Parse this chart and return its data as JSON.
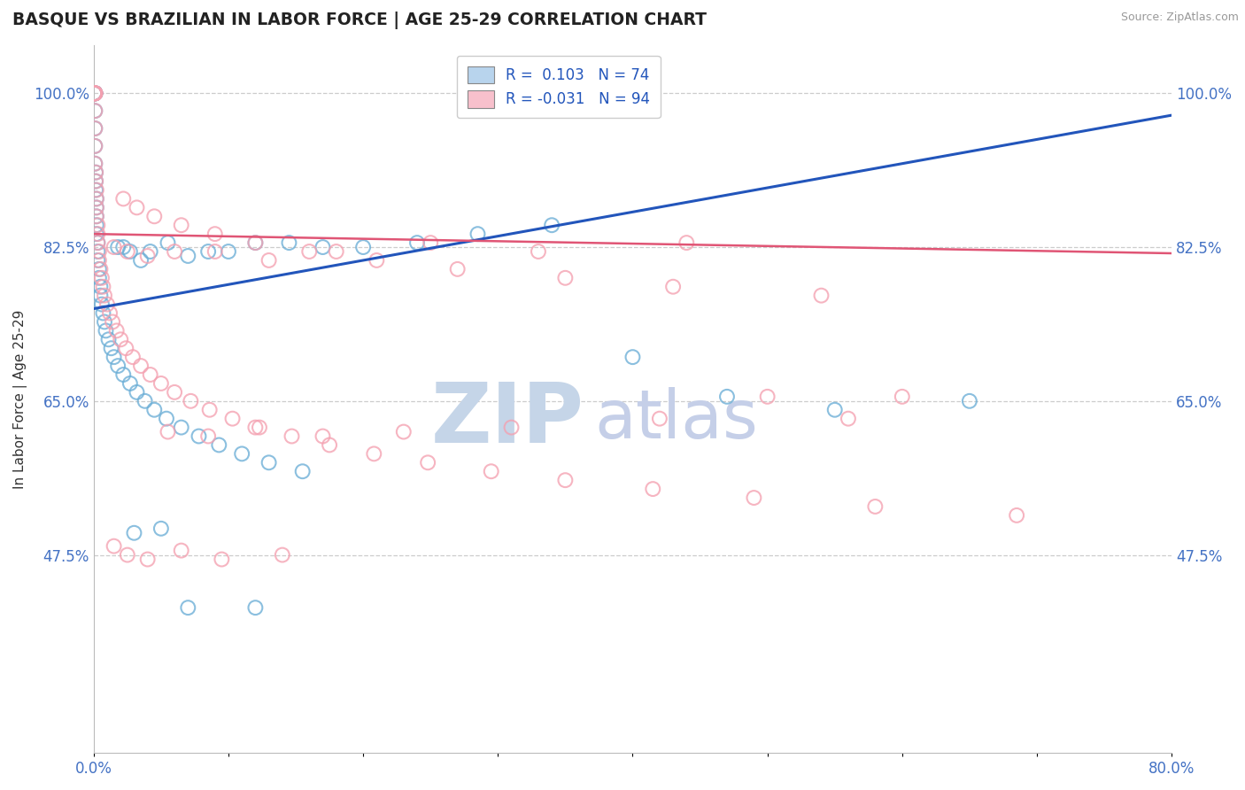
{
  "title": "BASQUE VS BRAZILIAN IN LABOR FORCE | AGE 25-29 CORRELATION CHART",
  "source": "Source: ZipAtlas.com",
  "ylabel": "In Labor Force | Age 25-29",
  "xlim": [
    0.0,
    0.8
  ],
  "ylim": [
    0.25,
    1.055
  ],
  "yticks": [
    0.475,
    0.65,
    0.825,
    1.0
  ],
  "ytick_labels": [
    "47.5%",
    "65.0%",
    "82.5%",
    "100.0%"
  ],
  "xticks": [
    0.0,
    0.1,
    0.2,
    0.3,
    0.4,
    0.5,
    0.6,
    0.7,
    0.8
  ],
  "xtick_labels": [
    "0.0%",
    "",
    "",
    "",
    "",
    "",
    "",
    "",
    "80.0%"
  ],
  "basque_color": "#6baed6",
  "brazilian_color": "#f4a0b0",
  "trend_color_basque": "#2255bb",
  "trend_color_brazilian": "#e05575",
  "watermark_zip": "ZIP",
  "watermark_atlas": "atlas",
  "watermark_color_zip": "#c5d5e8",
  "watermark_color_atlas": "#c5cfe8",
  "background_color": "#ffffff",
  "grid_color": "#cccccc",
  "tick_color": "#4472c4",
  "title_color": "#222222",
  "legend_basque_label": "R =  0.103   N = 74",
  "legend_brazil_label": "R = -0.031   N = 94",
  "blue_trend_x": [
    0.0,
    0.8
  ],
  "blue_trend_y": [
    0.755,
    0.975
  ],
  "pink_trend_x": [
    0.0,
    0.8
  ],
  "pink_trend_y": [
    0.84,
    0.818
  ],
  "basque_x": [
    0.0005,
    0.0005,
    0.0005,
    0.0005,
    0.0005,
    0.001,
    0.001,
    0.001,
    0.001,
    0.001,
    0.001,
    0.001,
    0.001,
    0.001,
    0.001,
    0.0015,
    0.0015,
    0.0015,
    0.002,
    0.002,
    0.002,
    0.002,
    0.002,
    0.003,
    0.003,
    0.003,
    0.004,
    0.004,
    0.005,
    0.005,
    0.006,
    0.007,
    0.008,
    0.009,
    0.011,
    0.013,
    0.015,
    0.018,
    0.022,
    0.027,
    0.032,
    0.038,
    0.045,
    0.054,
    0.065,
    0.078,
    0.093,
    0.11,
    0.13,
    0.155,
    0.018,
    0.022,
    0.027,
    0.035,
    0.042,
    0.055,
    0.07,
    0.085,
    0.1,
    0.12,
    0.145,
    0.17,
    0.2,
    0.24,
    0.285,
    0.34,
    0.4,
    0.47,
    0.55,
    0.65,
    0.03,
    0.05,
    0.07,
    0.12
  ],
  "basque_y": [
    1.0,
    1.0,
    1.0,
    1.0,
    1.0,
    1.0,
    1.0,
    1.0,
    1.0,
    1.0,
    1.0,
    0.98,
    0.96,
    0.94,
    0.92,
    0.91,
    0.9,
    0.89,
    0.88,
    0.87,
    0.86,
    0.85,
    0.84,
    0.83,
    0.82,
    0.81,
    0.8,
    0.79,
    0.78,
    0.77,
    0.76,
    0.75,
    0.74,
    0.73,
    0.72,
    0.71,
    0.7,
    0.69,
    0.68,
    0.67,
    0.66,
    0.65,
    0.64,
    0.63,
    0.62,
    0.61,
    0.6,
    0.59,
    0.58,
    0.57,
    0.825,
    0.825,
    0.82,
    0.81,
    0.82,
    0.83,
    0.815,
    0.82,
    0.82,
    0.83,
    0.83,
    0.825,
    0.825,
    0.83,
    0.84,
    0.85,
    0.7,
    0.655,
    0.64,
    0.65,
    0.5,
    0.505,
    0.415,
    0.415
  ],
  "brazilian_x": [
    0.0005,
    0.0005,
    0.0005,
    0.0005,
    0.0005,
    0.0005,
    0.001,
    0.001,
    0.001,
    0.001,
    0.001,
    0.001,
    0.001,
    0.001,
    0.001,
    0.001,
    0.0015,
    0.0015,
    0.002,
    0.002,
    0.002,
    0.002,
    0.003,
    0.003,
    0.003,
    0.004,
    0.004,
    0.005,
    0.006,
    0.007,
    0.008,
    0.01,
    0.012,
    0.014,
    0.017,
    0.02,
    0.024,
    0.029,
    0.035,
    0.042,
    0.05,
    0.06,
    0.072,
    0.086,
    0.103,
    0.123,
    0.147,
    0.175,
    0.208,
    0.248,
    0.295,
    0.35,
    0.415,
    0.49,
    0.58,
    0.685,
    0.022,
    0.032,
    0.045,
    0.065,
    0.09,
    0.12,
    0.16,
    0.21,
    0.27,
    0.35,
    0.43,
    0.54,
    0.5,
    0.6,
    0.015,
    0.025,
    0.04,
    0.06,
    0.09,
    0.13,
    0.18,
    0.25,
    0.33,
    0.44,
    0.055,
    0.085,
    0.12,
    0.17,
    0.23,
    0.31,
    0.42,
    0.56,
    0.015,
    0.025,
    0.04,
    0.065,
    0.095,
    0.14
  ],
  "brazilian_y": [
    1.0,
    1.0,
    1.0,
    1.0,
    1.0,
    1.0,
    1.0,
    1.0,
    1.0,
    1.0,
    1.0,
    1.0,
    0.98,
    0.96,
    0.94,
    0.92,
    0.91,
    0.9,
    0.89,
    0.88,
    0.87,
    0.86,
    0.85,
    0.84,
    0.83,
    0.82,
    0.81,
    0.8,
    0.79,
    0.78,
    0.77,
    0.76,
    0.75,
    0.74,
    0.73,
    0.72,
    0.71,
    0.7,
    0.69,
    0.68,
    0.67,
    0.66,
    0.65,
    0.64,
    0.63,
    0.62,
    0.61,
    0.6,
    0.59,
    0.58,
    0.57,
    0.56,
    0.55,
    0.54,
    0.53,
    0.52,
    0.88,
    0.87,
    0.86,
    0.85,
    0.84,
    0.83,
    0.82,
    0.81,
    0.8,
    0.79,
    0.78,
    0.77,
    0.655,
    0.655,
    0.825,
    0.82,
    0.815,
    0.82,
    0.82,
    0.81,
    0.82,
    0.83,
    0.82,
    0.83,
    0.615,
    0.61,
    0.62,
    0.61,
    0.615,
    0.62,
    0.63,
    0.63,
    0.485,
    0.475,
    0.47,
    0.48,
    0.47,
    0.475
  ]
}
